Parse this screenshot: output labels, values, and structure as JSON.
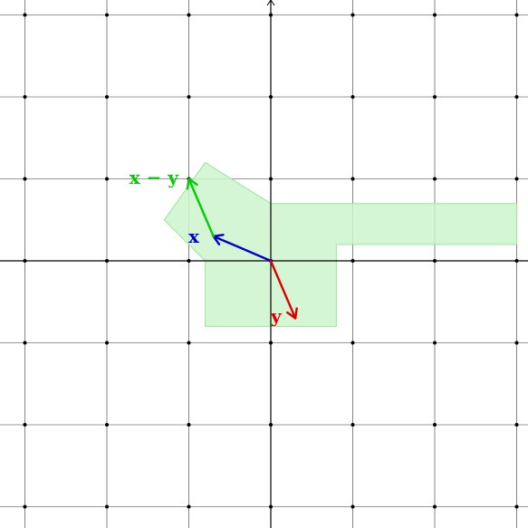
{
  "grid": {
    "x_range": [
      -3,
      3
    ],
    "y_range": [
      -3,
      3
    ],
    "step": 1,
    "dots_at_intersections": true
  },
  "region": {
    "color": "#ccf5cc",
    "stroke": "#99e699",
    "vertices": [
      [
        -0.8,
        1.2
      ],
      [
        0.0,
        0.7
      ],
      [
        3.0,
        0.7
      ],
      [
        3.0,
        0.2
      ],
      [
        0.8,
        0.2
      ],
      [
        0.8,
        -0.8
      ],
      [
        -0.8,
        -0.8
      ],
      [
        -0.8,
        0.0
      ],
      [
        -1.3,
        0.5
      ]
    ]
  },
  "vectors": [
    {
      "id": "x",
      "label": "x",
      "from": [
        0,
        0
      ],
      "to": [
        -0.7,
        0.3
      ],
      "color": "#0000cc"
    },
    {
      "id": "y",
      "label": "y",
      "from": [
        0,
        0
      ],
      "to": [
        0.3,
        -0.7
      ],
      "color": "#dd0000"
    },
    {
      "id": "x-minus-y",
      "label": "x − y",
      "from": [
        -0.7,
        0.3
      ],
      "to": [
        -1.0,
        1.0
      ],
      "color": "#00cc00"
    }
  ],
  "colors": {
    "grid": "#333333",
    "axis": "#000000"
  }
}
